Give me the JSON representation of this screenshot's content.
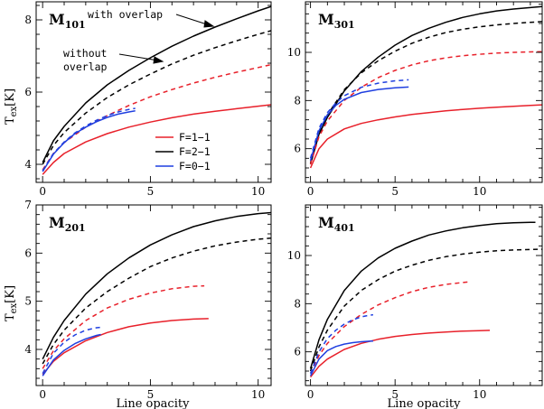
{
  "chart_data": {
    "type": "line",
    "ylabel": "T",
    "ylabel_sub": "ex",
    "ylabel_unit": "[K]",
    "xlabel": "Line opacity",
    "legend": {
      "placement": "lower-right of top-left panel",
      "entries": [
        {
          "label": "F=1−1",
          "color": "#e8202a"
        },
        {
          "label": "F=2−1",
          "color": "#000000"
        },
        {
          "label": "F=0−1",
          "color": "#1f3fe0"
        }
      ]
    },
    "annotations": [
      {
        "text": "with overlap",
        "target": "solid F=2-1 curve, M101 panel"
      },
      {
        "text": "without",
        "target": "dashed F=2-1 curve, M101 panel"
      },
      {
        "text": "overlap",
        "target": "dashed F=2-1 curve, M101 panel"
      }
    ],
    "panels": [
      {
        "label": "M",
        "label_sub": "101",
        "xlim": [
          -0.3,
          10.6
        ],
        "xticks": [
          0,
          5,
          10
        ],
        "ylim": [
          3.5,
          8.5
        ],
        "yticks": [
          4,
          6,
          8
        ],
        "series": [
          {
            "color": "#000000",
            "dash": false,
            "x": [
              0,
              0.5,
              1,
              2,
              3,
              4,
              5,
              6,
              7,
              8,
              9,
              10,
              10.6
            ],
            "y": [
              4.05,
              4.65,
              5.05,
              5.7,
              6.2,
              6.6,
              6.95,
              7.27,
              7.55,
              7.8,
              8.03,
              8.25,
              8.37
            ]
          },
          {
            "color": "#000000",
            "dash": true,
            "x": [
              0,
              0.5,
              1,
              2,
              3,
              4,
              5,
              6,
              7,
              8,
              9,
              10,
              10.6
            ],
            "y": [
              4.0,
              4.52,
              4.88,
              5.42,
              5.85,
              6.2,
              6.5,
              6.78,
              7.02,
              7.23,
              7.42,
              7.6,
              7.7
            ]
          },
          {
            "color": "#e8202a",
            "dash": true,
            "x": [
              0,
              0.5,
              1,
              2,
              3,
              4,
              5,
              6,
              7,
              8,
              9,
              10,
              10.6
            ],
            "y": [
              3.85,
              4.3,
              4.6,
              5.03,
              5.35,
              5.63,
              5.87,
              6.07,
              6.25,
              6.41,
              6.55,
              6.68,
              6.76
            ]
          },
          {
            "color": "#e8202a",
            "dash": false,
            "x": [
              0,
              0.5,
              1,
              2,
              3,
              4,
              5,
              6,
              7,
              8,
              9,
              10,
              10.6
            ],
            "y": [
              3.72,
              4.05,
              4.3,
              4.62,
              4.85,
              5.03,
              5.17,
              5.29,
              5.39,
              5.47,
              5.54,
              5.61,
              5.65
            ]
          },
          {
            "color": "#1f3fe0",
            "dash": true,
            "x": [
              0,
              0.5,
              1,
              1.5,
              2,
              2.5,
              3,
              3.5,
              4,
              4.3
            ],
            "y": [
              3.82,
              4.3,
              4.62,
              4.87,
              5.06,
              5.22,
              5.35,
              5.45,
              5.52,
              5.55
            ]
          },
          {
            "color": "#1f3fe0",
            "dash": false,
            "x": [
              0,
              0.5,
              1,
              1.5,
              2,
              2.5,
              3,
              3.5,
              4,
              4.3
            ],
            "y": [
              3.8,
              4.28,
              4.6,
              4.85,
              5.03,
              5.18,
              5.3,
              5.39,
              5.45,
              5.48
            ]
          }
        ]
      },
      {
        "label": "M",
        "label_sub": "301",
        "xlim": [
          -0.3,
          13.7
        ],
        "xticks": [
          0,
          5,
          10
        ],
        "ylim": [
          4.6,
          12.1
        ],
        "yticks": [
          6,
          8,
          10
        ],
        "series": [
          {
            "color": "#000000",
            "dash": false,
            "x": [
              0,
              0.5,
              1,
              2,
              3,
              4,
              5,
              6,
              7,
              8,
              9,
              10,
              11,
              12,
              13,
              13.7
            ],
            "y": [
              5.35,
              6.6,
              7.3,
              8.4,
              9.2,
              9.8,
              10.3,
              10.7,
              11.0,
              11.25,
              11.45,
              11.6,
              11.72,
              11.8,
              11.86,
              11.9
            ]
          },
          {
            "color": "#000000",
            "dash": true,
            "x": [
              0,
              0.5,
              1,
              2,
              3,
              4,
              5,
              6,
              7,
              8,
              9,
              10,
              11,
              12,
              13,
              13.7
            ],
            "y": [
              5.4,
              6.7,
              7.4,
              8.45,
              9.15,
              9.65,
              10.05,
              10.38,
              10.63,
              10.82,
              10.96,
              11.06,
              11.14,
              11.2,
              11.25,
              11.28
            ]
          },
          {
            "color": "#e8202a",
            "dash": true,
            "x": [
              0,
              0.5,
              1,
              2,
              3,
              4,
              5,
              6,
              7,
              8,
              9,
              10,
              11,
              12,
              13,
              13.7
            ],
            "y": [
              5.35,
              6.5,
              7.15,
              8.0,
              8.55,
              8.95,
              9.25,
              9.48,
              9.65,
              9.77,
              9.86,
              9.92,
              9.97,
              10.0,
              10.02,
              10.03
            ]
          },
          {
            "color": "#e8202a",
            "dash": false,
            "x": [
              0,
              0.5,
              1,
              2,
              3,
              4,
              5,
              6,
              7,
              8,
              9,
              10,
              11,
              12,
              13,
              13.7
            ],
            "y": [
              5.2,
              6.0,
              6.4,
              6.82,
              7.05,
              7.2,
              7.32,
              7.42,
              7.5,
              7.57,
              7.63,
              7.68,
              7.72,
              7.76,
              7.8,
              7.82
            ]
          },
          {
            "color": "#1f3fe0",
            "dash": true,
            "x": [
              0,
              0.5,
              1,
              1.5,
              2,
              3,
              4,
              5,
              5.8
            ],
            "y": [
              5.6,
              6.85,
              7.5,
              7.9,
              8.2,
              8.55,
              8.72,
              8.82,
              8.86
            ]
          },
          {
            "color": "#1f3fe0",
            "dash": false,
            "x": [
              0,
              0.5,
              1,
              1.5,
              2,
              3,
              4,
              5,
              5.8
            ],
            "y": [
              5.5,
              6.75,
              7.4,
              7.8,
              8.05,
              8.33,
              8.46,
              8.53,
              8.56
            ]
          }
        ]
      },
      {
        "label": "M",
        "label_sub": "201",
        "xlim": [
          -0.3,
          10.6
        ],
        "xticks": [
          0,
          5,
          10
        ],
        "ylim": [
          3.25,
          7.0
        ],
        "yticks": [
          4,
          5,
          6,
          7
        ],
        "series": [
          {
            "color": "#000000",
            "dash": false,
            "x": [
              0,
              0.5,
              1,
              2,
              3,
              4,
              5,
              6,
              7,
              8,
              9,
              10,
              10.6
            ],
            "y": [
              3.8,
              4.25,
              4.6,
              5.15,
              5.57,
              5.9,
              6.17,
              6.38,
              6.55,
              6.67,
              6.76,
              6.82,
              6.84
            ]
          },
          {
            "color": "#000000",
            "dash": true,
            "x": [
              0,
              0.5,
              1,
              2,
              3,
              4,
              5,
              6,
              7,
              8,
              9,
              10,
              10.6
            ],
            "y": [
              3.7,
              4.1,
              4.4,
              4.86,
              5.2,
              5.48,
              5.72,
              5.9,
              6.04,
              6.15,
              6.23,
              6.29,
              6.31
            ]
          },
          {
            "color": "#e8202a",
            "dash": true,
            "x": [
              0,
              0.5,
              1,
              2,
              3,
              4,
              5,
              6,
              7,
              7.5
            ],
            "y": [
              3.6,
              3.97,
              4.22,
              4.6,
              4.86,
              5.04,
              5.17,
              5.26,
              5.31,
              5.32
            ]
          },
          {
            "color": "#e8202a",
            "dash": false,
            "x": [
              0,
              0.5,
              1,
              2,
              3,
              4,
              5,
              6,
              7,
              7.7
            ],
            "y": [
              3.48,
              3.75,
              3.93,
              4.18,
              4.35,
              4.47,
              4.55,
              4.6,
              4.63,
              4.64
            ]
          },
          {
            "color": "#1f3fe0",
            "dash": true,
            "x": [
              0,
              0.5,
              1,
              1.5,
              2,
              2.5,
              2.7
            ],
            "y": [
              3.5,
              3.92,
              4.15,
              4.3,
              4.4,
              4.45,
              4.46
            ]
          },
          {
            "color": "#1f3fe0",
            "dash": false,
            "x": [
              0,
              0.5,
              1,
              1.5,
              2,
              2.5,
              2.7
            ],
            "y": [
              3.45,
              3.78,
              3.98,
              4.12,
              4.22,
              4.29,
              4.31
            ]
          }
        ]
      },
      {
        "label": "M",
        "label_sub": "401",
        "xlim": [
          -0.3,
          13.7
        ],
        "xticks": [
          0,
          5,
          10
        ],
        "ylim": [
          4.6,
          12.1
        ],
        "yticks": [
          6,
          8,
          10
        ],
        "series": [
          {
            "color": "#000000",
            "dash": false,
            "x": [
              0,
              0.5,
              1,
              2,
              3,
              4,
              5,
              6,
              7,
              8,
              9,
              10,
              11,
              12,
              13,
              13.3
            ],
            "y": [
              5.3,
              6.5,
              7.35,
              8.55,
              9.35,
              9.9,
              10.3,
              10.6,
              10.85,
              11.02,
              11.15,
              11.25,
              11.32,
              11.36,
              11.38,
              11.38
            ]
          },
          {
            "color": "#000000",
            "dash": true,
            "x": [
              0,
              0.5,
              1,
              2,
              3,
              4,
              5,
              6,
              7,
              8,
              9,
              10,
              11,
              12,
              13,
              13.7
            ],
            "y": [
              5.2,
              6.2,
              6.9,
              7.9,
              8.55,
              9.0,
              9.35,
              9.6,
              9.8,
              9.95,
              10.06,
              10.14,
              10.2,
              10.23,
              10.25,
              10.26
            ]
          },
          {
            "color": "#e8202a",
            "dash": true,
            "x": [
              0,
              0.5,
              1,
              2,
              3,
              4,
              5,
              6,
              7,
              8,
              9,
              9.3
            ],
            "y": [
              5.1,
              5.85,
              6.35,
              7.05,
              7.55,
              7.95,
              8.25,
              8.5,
              8.68,
              8.8,
              8.88,
              8.9
            ]
          },
          {
            "color": "#e8202a",
            "dash": false,
            "x": [
              0,
              0.5,
              1,
              2,
              3,
              4,
              5,
              6,
              7,
              8,
              9,
              10,
              10.6
            ],
            "y": [
              4.95,
              5.4,
              5.7,
              6.1,
              6.35,
              6.52,
              6.64,
              6.72,
              6.78,
              6.82,
              6.86,
              6.88,
              6.89
            ]
          },
          {
            "color": "#1f3fe0",
            "dash": true,
            "x": [
              0,
              0.5,
              1,
              1.5,
              2,
              2.5,
              3,
              3.5,
              3.7
            ],
            "y": [
              5.1,
              6.0,
              6.55,
              6.9,
              7.15,
              7.33,
              7.45,
              7.52,
              7.54
            ]
          },
          {
            "color": "#1f3fe0",
            "dash": false,
            "x": [
              0,
              0.5,
              1,
              1.5,
              2,
              2.5,
              3,
              3.5,
              3.7
            ],
            "y": [
              5.0,
              5.7,
              6.05,
              6.22,
              6.32,
              6.38,
              6.42,
              6.44,
              6.45
            ]
          }
        ]
      }
    ]
  }
}
